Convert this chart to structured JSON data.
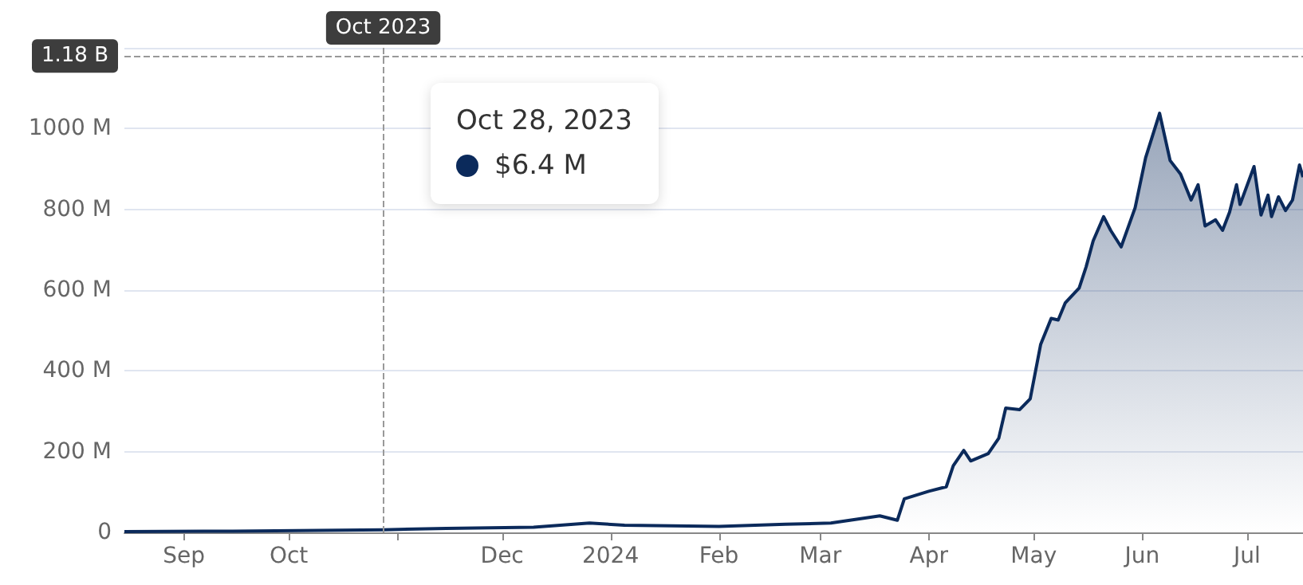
{
  "chart_data": {
    "type": "area",
    "color": "#0b2a5b",
    "marker": "none",
    "grid": "y",
    "xlim": [
      "2023-08-15",
      "2024-07-17"
    ],
    "xticks": [
      {
        "value": "2023-09-01",
        "label": "Sep"
      },
      {
        "value": "2023-10-01",
        "label": "Oct"
      },
      {
        "value": "2023-11-01",
        "label": null
      },
      {
        "value": "2023-12-01",
        "label": "Dec"
      },
      {
        "value": "2024-01-01",
        "label": "2024"
      },
      {
        "value": "2024-02-01",
        "label": "Feb"
      },
      {
        "value": "2024-03-01",
        "label": "Mar"
      },
      {
        "value": "2024-04-01",
        "label": "Apr"
      },
      {
        "value": "2024-05-01",
        "label": "May"
      },
      {
        "value": "2024-06-01",
        "label": "Jun"
      },
      {
        "value": "2024-07-01",
        "label": "Jul"
      }
    ],
    "ylim": [
      0,
      1200
    ],
    "yticks": [
      0,
      {
        "value": 200,
        "label": "200 M"
      },
      {
        "value": 400,
        "label": "400 M"
      },
      {
        "value": 600,
        "label": "600 M"
      },
      {
        "value": 800,
        "label": "800 M"
      },
      {
        "value": 1000,
        "label": "1000 M"
      },
      {
        "value": 1200,
        "label": null
      }
    ],
    "x": [
      "2023-08-15",
      "2023-09-15",
      "2023-10-28",
      "2023-11-15",
      "2023-12-10",
      "2023-12-26",
      "2024-01-05",
      "2024-02-01",
      "2024-02-20",
      "2024-03-04",
      "2024-03-18",
      "2024-03-23",
      "2024-03-25",
      "2024-04-01",
      "2024-04-06",
      "2024-04-08",
      "2024-04-11",
      "2024-04-13",
      "2024-04-18",
      "2024-04-21",
      "2024-04-23",
      "2024-04-27",
      "2024-04-30",
      "2024-05-03",
      "2024-05-06",
      "2024-05-08",
      "2024-05-10",
      "2024-05-14",
      "2024-05-16",
      "2024-05-18",
      "2024-05-21",
      "2024-05-23",
      "2024-05-26",
      "2024-05-30",
      "2024-06-02",
      "2024-06-06",
      "2024-06-09",
      "2024-06-12",
      "2024-06-15",
      "2024-06-17",
      "2024-06-19",
      "2024-06-22",
      "2024-06-24",
      "2024-06-26",
      "2024-06-28",
      "2024-06-29",
      "2024-07-03",
      "2024-07-05",
      "2024-07-07",
      "2024-07-08",
      "2024-07-10",
      "2024-07-12",
      "2024-07-14",
      "2024-07-16",
      "2024-07-17"
    ],
    "values": [
      2,
      3,
      6.4,
      10,
      13,
      23,
      18,
      15,
      20,
      23,
      41,
      30,
      83,
      102,
      113,
      165,
      203,
      177,
      195,
      233,
      308,
      304,
      331,
      466,
      530,
      526,
      568,
      605,
      658,
      722,
      782,
      748,
      707,
      804,
      928,
      1038,
      921,
      887,
      823,
      861,
      759,
      774,
      748,
      793,
      861,
      812,
      906,
      786,
      835,
      782,
      831,
      797,
      823,
      910,
      880
    ],
    "ref_lines": [
      {
        "axis": "y",
        "value": 1180,
        "label": "1.18 B",
        "line_style": "dashed"
      },
      {
        "axis": "x",
        "value": "2023-10-28",
        "label": "Oct 2023",
        "line_style": "dashed"
      }
    ],
    "annotations": [
      "Oct 28, 2023",
      "$6.4 M"
    ]
  }
}
